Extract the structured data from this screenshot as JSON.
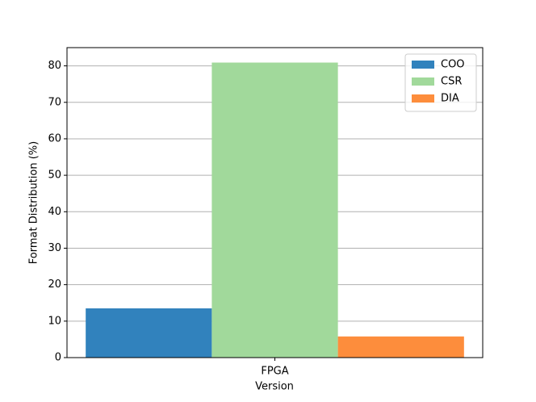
{
  "chart_data": {
    "type": "bar",
    "categories": [
      "FPGA"
    ],
    "series": [
      {
        "name": "COO",
        "color": "#3182bd",
        "values": [
          13.5
        ]
      },
      {
        "name": "CSR",
        "color": "#a1d99b",
        "values": [
          80.9
        ]
      },
      {
        "name": "DIA",
        "color": "#fd8d3c",
        "values": [
          5.8
        ]
      }
    ],
    "xlabel": "Version",
    "ylabel": "Format Distribution (%)",
    "ylim": [
      0,
      85
    ],
    "yticks": [
      0,
      10,
      20,
      30,
      40,
      50,
      60,
      70,
      80
    ],
    "grid": true,
    "legend": "upper-right"
  }
}
